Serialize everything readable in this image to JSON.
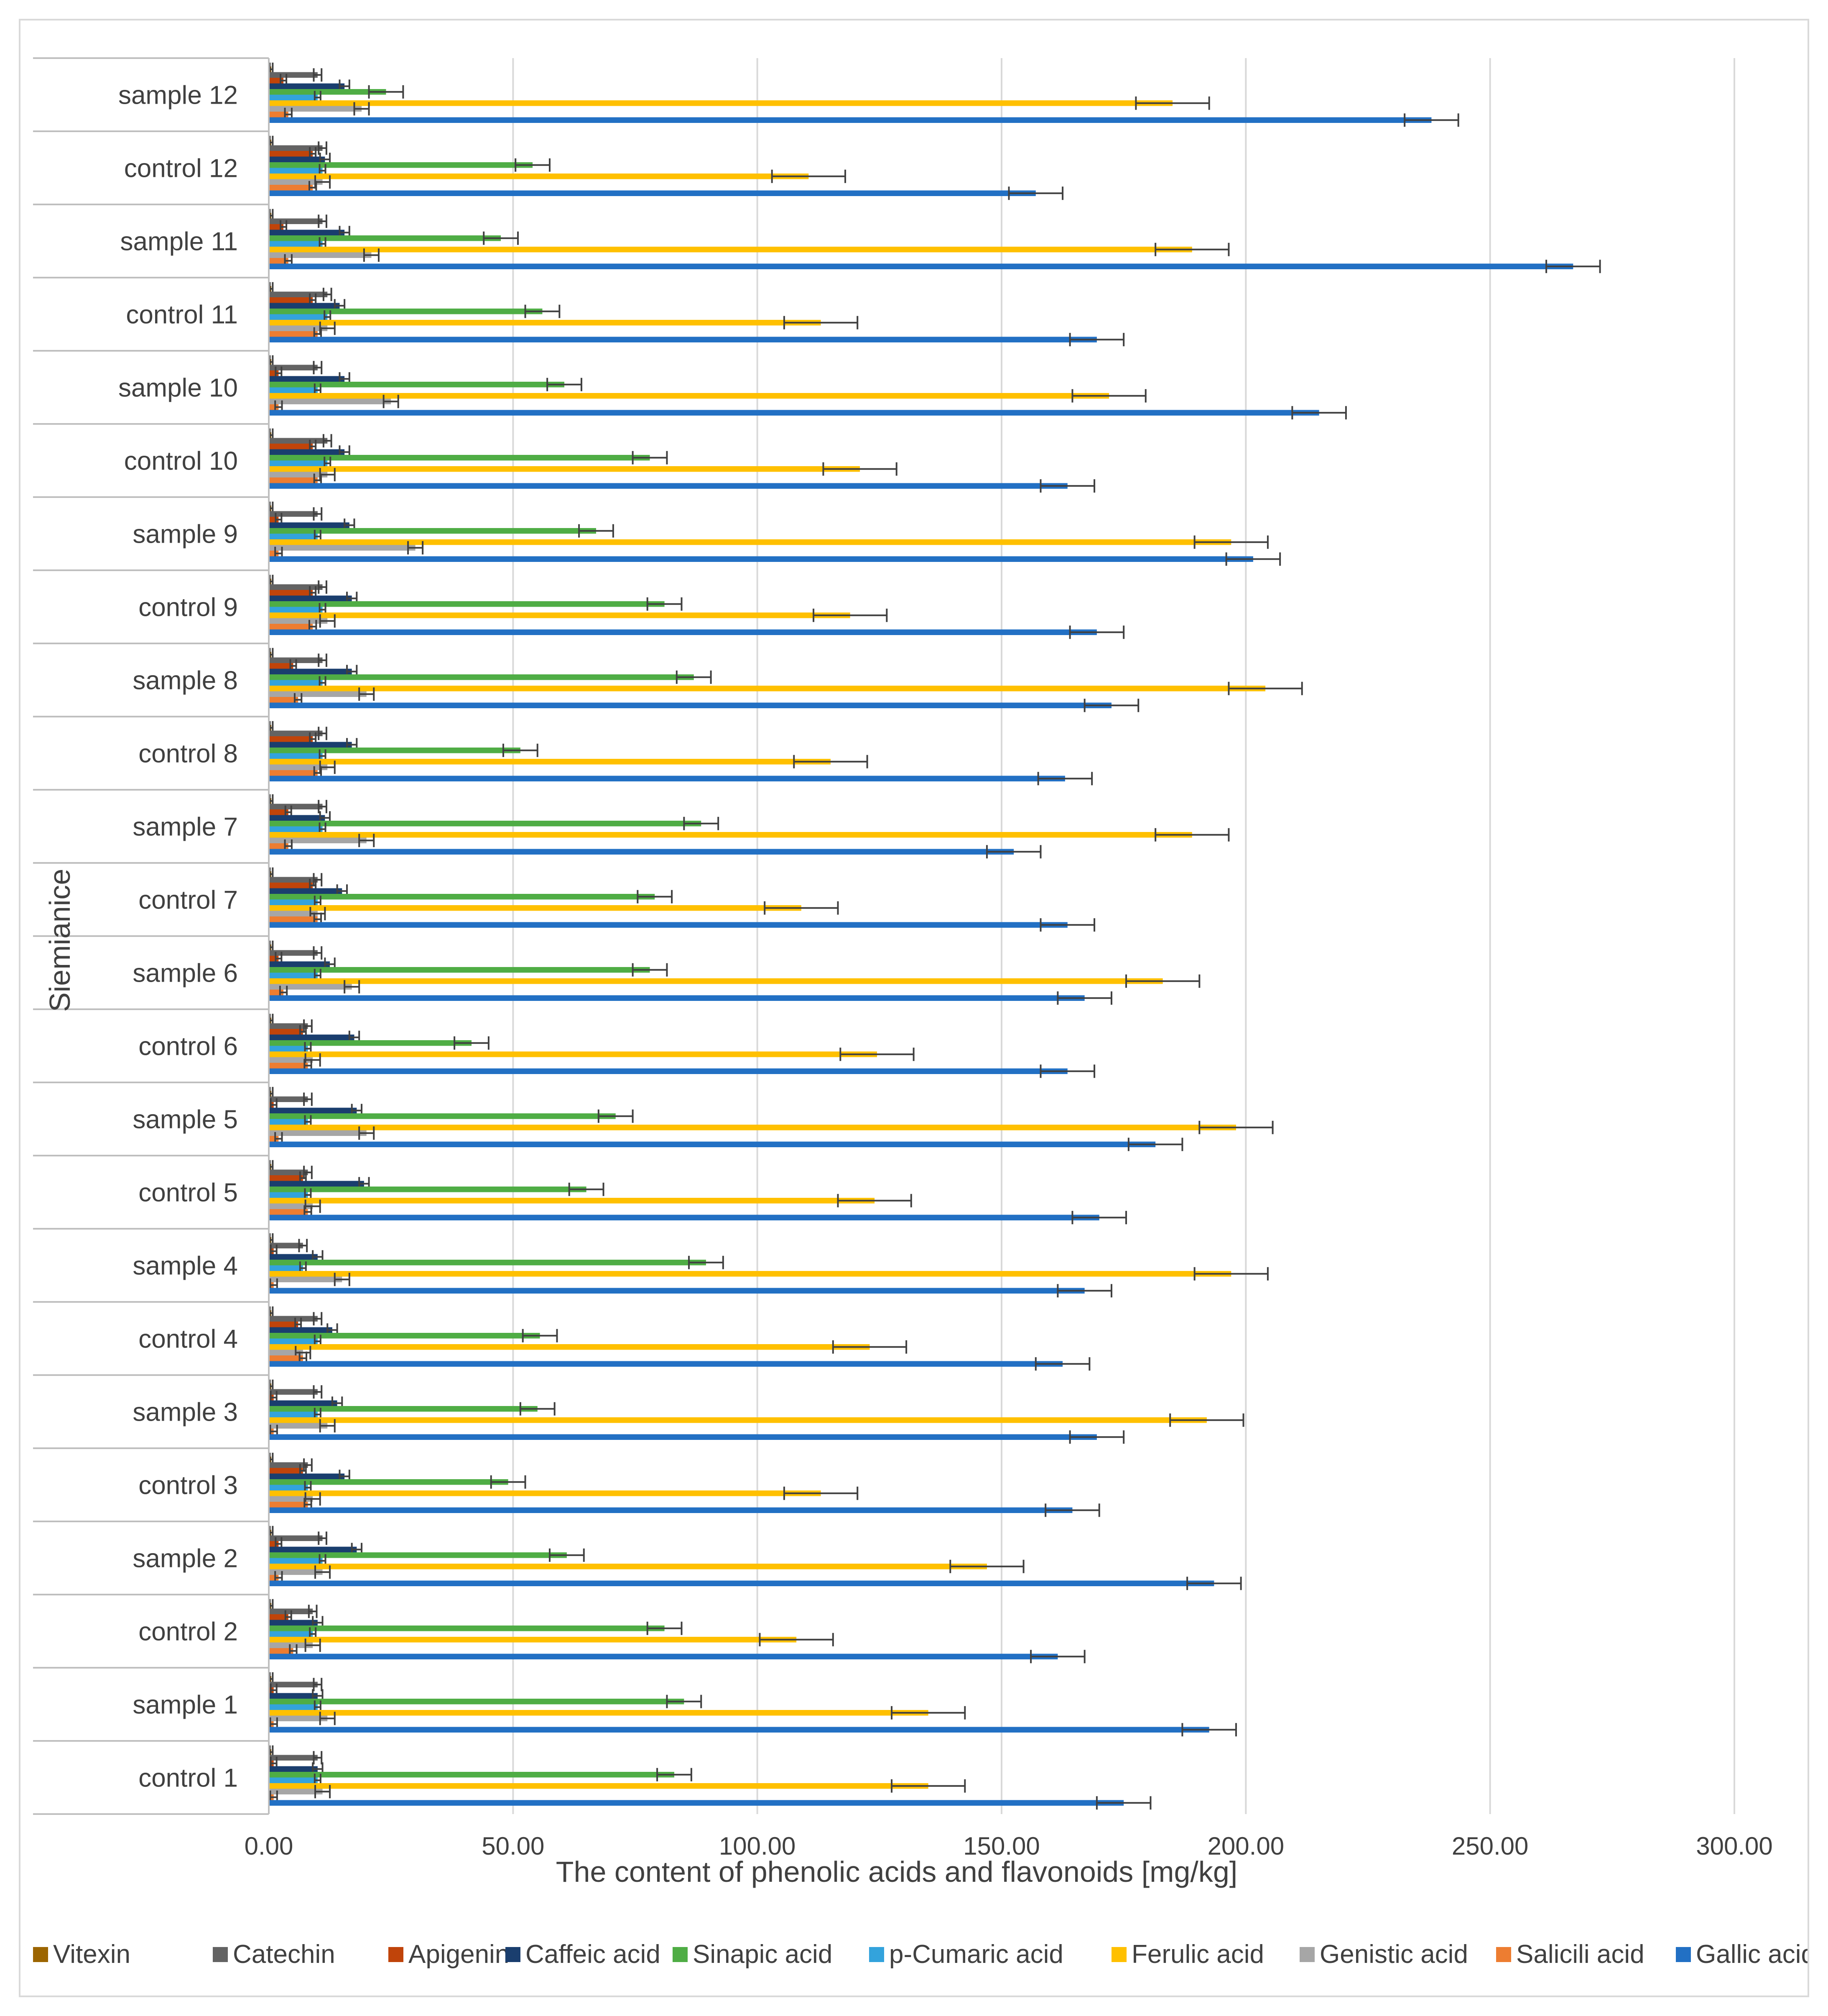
{
  "chart_data": {
    "type": "bar",
    "orientation": "horizontal",
    "xlabel": "The content of phenolic acids and flavonoids [mg/kg]",
    "ylabel": "Siemianice",
    "xlim": [
      0,
      300
    ],
    "x_ticks": [
      "0.00",
      "50.00",
      "100.00",
      "150.00",
      "200.00",
      "250.00",
      "300.00"
    ],
    "grid": true,
    "legend_position": "bottom",
    "categories": [
      "sample 12",
      "control 12",
      "sample 11",
      "control 11",
      "sample 10",
      "control 10",
      "sample 9",
      "control 9",
      "sample 8",
      "control 8",
      "sample 7",
      "control 7",
      "sample 6",
      "control 6",
      "sample 5",
      "control 5",
      "sample 4",
      "control 4",
      "sample 3",
      "control 3",
      "sample 2",
      "control 2",
      "sample 1",
      "control 1"
    ],
    "series": [
      {
        "name": "Vitexin",
        "color": "#9C6500",
        "values": [
          0.5,
          0.5,
          0.5,
          0.5,
          0.5,
          0.5,
          0.5,
          0.5,
          0.5,
          0.5,
          0.5,
          0.5,
          0.5,
          0.5,
          0.5,
          0.5,
          0.5,
          0.5,
          0.5,
          0.5,
          0.5,
          0.5,
          0.5,
          0.5
        ],
        "errors": [
          0.3,
          0.3,
          0.3,
          0.3,
          0.3,
          0.3,
          0.3,
          0.3,
          0.3,
          0.3,
          0.3,
          0.3,
          0.3,
          0.3,
          0.3,
          0.3,
          0.3,
          0.3,
          0.3,
          0.3,
          0.3,
          0.3,
          0.3,
          0.3
        ]
      },
      {
        "name": "Catechin",
        "color": "#636363",
        "values": [
          10,
          11,
          11,
          12,
          10,
          12,
          10,
          11,
          11,
          11,
          11,
          10,
          10,
          8,
          8,
          8,
          7,
          10,
          10,
          8,
          11,
          9,
          10,
          10
        ],
        "errors": [
          0.8,
          0.8,
          0.8,
          0.8,
          0.8,
          0.8,
          0.8,
          0.8,
          0.8,
          0.8,
          0.8,
          0.8,
          0.8,
          0.8,
          0.8,
          0.8,
          0.8,
          0.8,
          0.8,
          0.8,
          0.8,
          0.8,
          0.8,
          0.8
        ]
      },
      {
        "name": "Apigenin",
        "color": "#C0440A",
        "values": [
          3,
          9,
          3,
          9,
          2,
          9,
          2,
          9,
          5,
          9,
          4,
          9,
          2,
          7,
          1,
          7,
          1,
          6,
          1,
          7,
          2,
          4,
          1,
          1
        ],
        "errors": [
          0.6,
          0.6,
          0.6,
          0.6,
          0.6,
          0.6,
          0.6,
          0.6,
          0.6,
          0.6,
          0.6,
          0.6,
          0.6,
          0.6,
          0.6,
          0.6,
          0.6,
          0.6,
          0.6,
          0.6,
          0.6,
          0.6,
          0.6,
          0.6
        ]
      },
      {
        "name": "Caffeic acid",
        "color": "#1A3E6E",
        "values": [
          15.5,
          11.5,
          15.5,
          14.5,
          15.5,
          15.5,
          16.5,
          17,
          17,
          17,
          11.5,
          15,
          12.5,
          17.5,
          18,
          19.5,
          10,
          13,
          14,
          15.5,
          18,
          10,
          10,
          10
        ],
        "errors": [
          1,
          1,
          1,
          1,
          1,
          1,
          1,
          1,
          1,
          1,
          1,
          1,
          1,
          1,
          1,
          1,
          1,
          1,
          1,
          1,
          1,
          1,
          1,
          1
        ]
      },
      {
        "name": "Sinapic acid",
        "color": "#4FAD45",
        "values": [
          24,
          54,
          47.5,
          56,
          60.5,
          78,
          67,
          81,
          87,
          51.5,
          88.5,
          79,
          78,
          41.5,
          71,
          65,
          89.5,
          55.5,
          55,
          49,
          61,
          81,
          85,
          83
        ],
        "errors": [
          3.5,
          3.5,
          3.5,
          3.5,
          3.5,
          3.5,
          3.5,
          3.5,
          3.5,
          3.5,
          3.5,
          3.5,
          3.5,
          3.5,
          3.5,
          3.5,
          3.5,
          3.5,
          3.5,
          3.5,
          3.5,
          3.5,
          3.5,
          3.5
        ]
      },
      {
        "name": "p-Cumaric acid",
        "color": "#33A3DC",
        "values": [
          10,
          11,
          11,
          12,
          10,
          12,
          10,
          11,
          11,
          11,
          11,
          10,
          10,
          8,
          8,
          8,
          7,
          10,
          10,
          8,
          11,
          9,
          10,
          10
        ],
        "errors": [
          0.6,
          0.6,
          0.6,
          0.6,
          0.6,
          0.6,
          0.6,
          0.6,
          0.6,
          0.6,
          0.6,
          0.6,
          0.6,
          0.6,
          0.6,
          0.6,
          0.6,
          0.6,
          0.6,
          0.6,
          0.6,
          0.6,
          0.6,
          0.6
        ]
      },
      {
        "name": "Ferulic acid",
        "color": "#FFC000",
        "values": [
          185,
          110.5,
          189,
          113,
          172,
          121,
          197,
          119,
          204,
          115,
          189,
          109,
          183,
          124.5,
          198,
          124,
          197,
          123,
          192,
          113,
          147,
          108,
          135,
          135
        ],
        "errors": [
          7.5,
          7.5,
          7.5,
          7.5,
          7.5,
          7.5,
          7.5,
          7.5,
          7.5,
          7.5,
          7.5,
          7.5,
          7.5,
          7.5,
          7.5,
          7.5,
          7.5,
          7.5,
          7.5,
          7.5,
          7.5,
          7.5,
          7.5,
          7.5
        ]
      },
      {
        "name": "Genistic acid",
        "color": "#A6A6A6",
        "values": [
          19,
          11,
          21,
          12,
          25,
          12,
          30,
          12,
          20,
          12,
          20,
          10,
          17,
          9,
          20,
          9,
          15,
          7,
          12,
          9,
          11,
          9,
          12,
          11
        ],
        "errors": [
          1.5,
          1.5,
          1.5,
          1.5,
          1.5,
          1.5,
          1.5,
          1.5,
          1.5,
          1.5,
          1.5,
          1.5,
          1.5,
          1.5,
          1.5,
          1.5,
          1.5,
          1.5,
          1.5,
          1.5,
          1.5,
          1.5,
          1.5,
          1.5
        ]
      },
      {
        "name": "Salicili acid",
        "color": "#ED7D31",
        "values": [
          4,
          9,
          4,
          10,
          2,
          10,
          2,
          9,
          6,
          10,
          4,
          10,
          3,
          8,
          2,
          8,
          1,
          7,
          1,
          8,
          2,
          5,
          1,
          1
        ],
        "errors": [
          0.7,
          0.7,
          0.7,
          0.7,
          0.7,
          0.7,
          0.7,
          0.7,
          0.7,
          0.7,
          0.7,
          0.7,
          0.7,
          0.7,
          0.7,
          0.7,
          0.7,
          0.7,
          0.7,
          0.7,
          0.7,
          0.7,
          0.7,
          0.7
        ]
      },
      {
        "name": "Gallic acid",
        "color": "#2270C4",
        "values": [
          238,
          157,
          267,
          169.5,
          215,
          163.5,
          201.5,
          169.5,
          172.5,
          163,
          152.5,
          163.5,
          167,
          163.5,
          181.5,
          170,
          167,
          162.5,
          169.5,
          164.5,
          193.5,
          161.5,
          192.5,
          175
        ],
        "errors": [
          5.5,
          5.5,
          5.5,
          5.5,
          5.5,
          5.5,
          5.5,
          5.5,
          5.5,
          5.5,
          5.5,
          5.5,
          5.5,
          5.5,
          5.5,
          5.5,
          5.5,
          5.5,
          5.5,
          5.5,
          5.5,
          5.5,
          5.5,
          5.5
        ]
      }
    ]
  }
}
